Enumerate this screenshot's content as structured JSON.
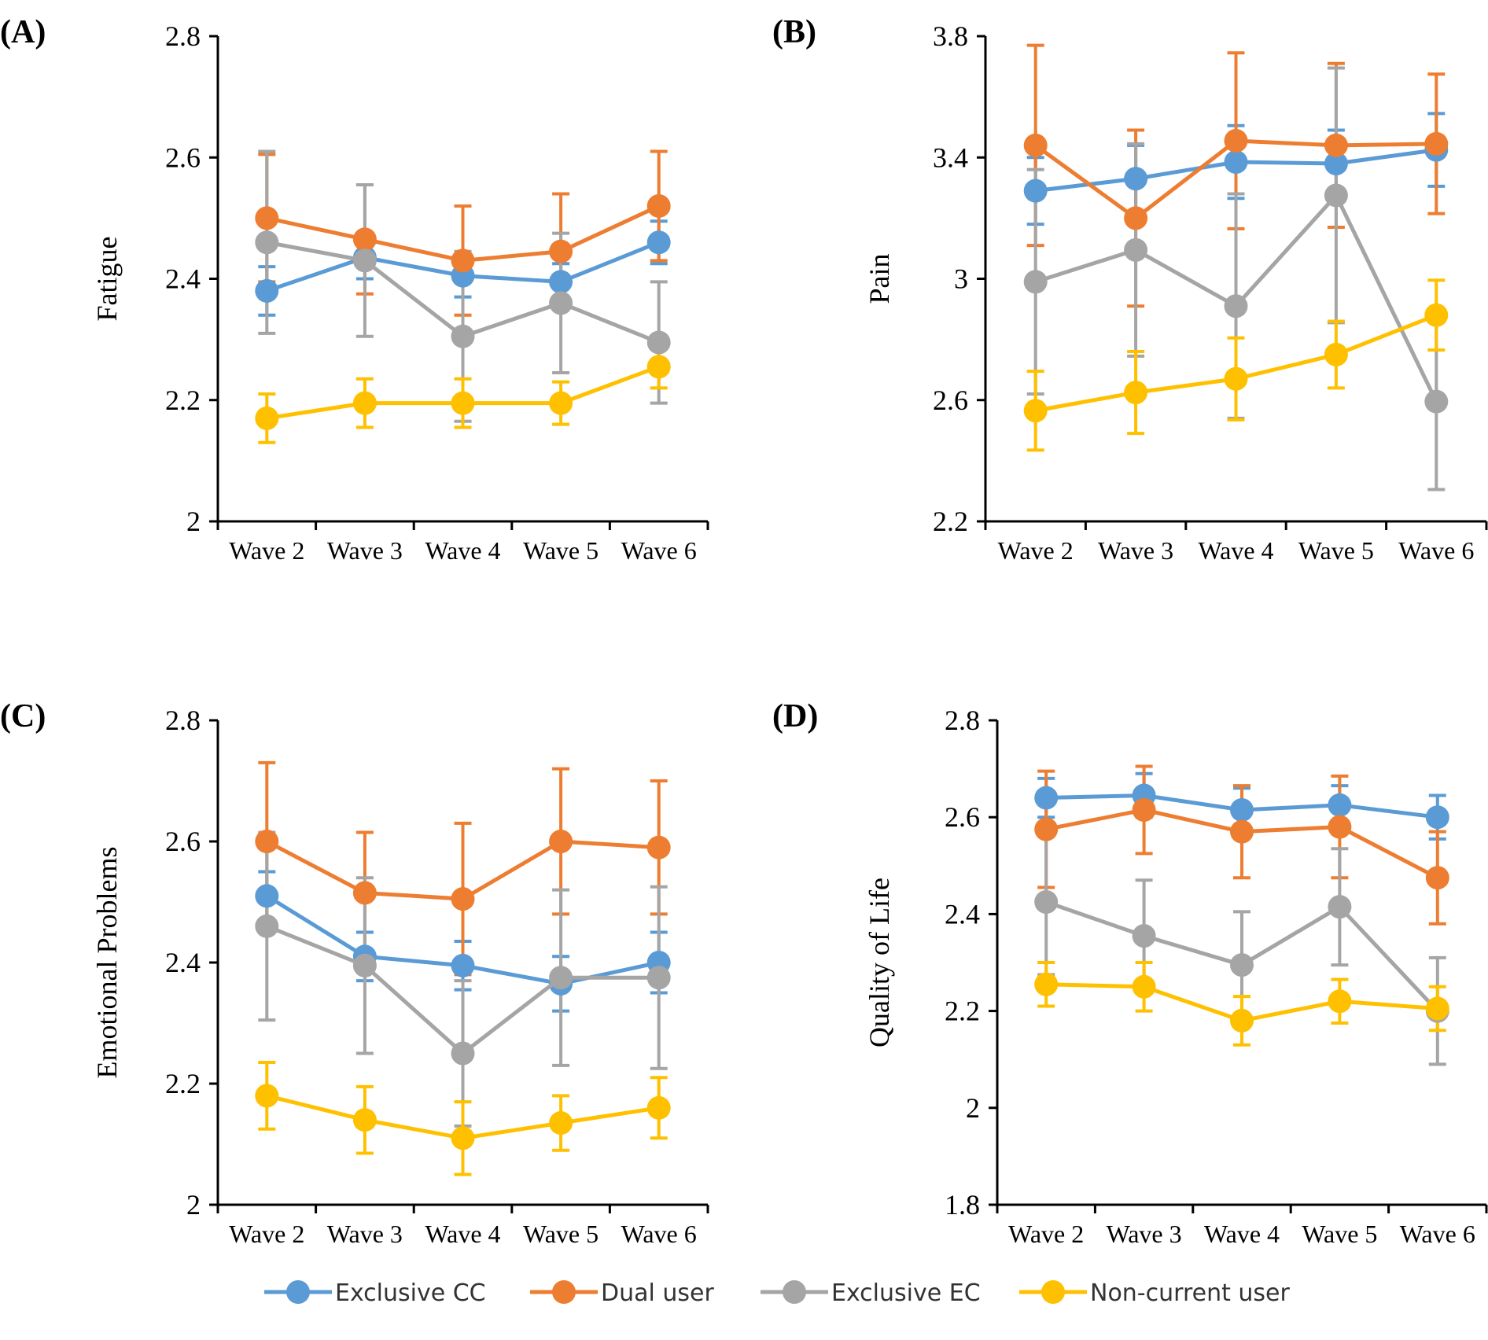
{
  "colors": {
    "exclusive_cc": "#5b9bd5",
    "dual_user": "#ed7d31",
    "exclusive_ec": "#a5a5a5",
    "non_current": "#ffc000",
    "axis": "#000000"
  },
  "legend": [
    {
      "name": "Exclusive CC",
      "color": "#5b9bd5"
    },
    {
      "name": "Dual user",
      "color": "#ed7d31"
    },
    {
      "name": "Exclusive EC",
      "color": "#a5a5a5"
    },
    {
      "name": "Non-current user",
      "color": "#ffc000"
    }
  ],
  "chart_data": [
    {
      "type": "line",
      "panel_label": "(A)",
      "ylabel": "Fatigue",
      "categories": [
        "Wave 2",
        "Wave 3",
        "Wave 4",
        "Wave 5",
        "Wave 6"
      ],
      "ylim": [
        2,
        2.8
      ],
      "yticks": [
        2,
        2.2,
        2.4,
        2.6,
        2.8
      ],
      "ytick_labels": [
        "2",
        "2.2",
        "2.4",
        "2.6",
        "2.8"
      ],
      "series": [
        {
          "name": "Exclusive CC",
          "values": [
            2.38,
            2.435,
            2.405,
            2.395,
            2.46
          ],
          "err": [
            0.04,
            0.035,
            0.035,
            0.03,
            0.035
          ]
        },
        {
          "name": "Dual user",
          "values": [
            2.5,
            2.465,
            2.43,
            2.445,
            2.52
          ],
          "err": [
            0.105,
            0.09,
            0.09,
            0.095,
            0.09
          ]
        },
        {
          "name": "Exclusive EC",
          "values": [
            2.46,
            2.43,
            2.305,
            2.36,
            2.295
          ],
          "err": [
            0.15,
            0.125,
            0.14,
            0.115,
            0.1
          ]
        },
        {
          "name": "Non-current user",
          "values": [
            2.17,
            2.195,
            2.195,
            2.195,
            2.255
          ],
          "err": [
            0.04,
            0.04,
            0.04,
            0.035,
            0.035
          ]
        }
      ]
    },
    {
      "type": "line",
      "panel_label": "(B)",
      "ylabel": "Pain",
      "categories": [
        "Wave 2",
        "Wave 3",
        "Wave 4",
        "Wave 5",
        "Wave 6"
      ],
      "ylim": [
        2.2,
        3.8
      ],
      "yticks": [
        2.2,
        2.6,
        3.0,
        3.4,
        3.8
      ],
      "ytick_labels": [
        "2.2",
        "2.6",
        "3",
        "3.4",
        "3.8"
      ],
      "series": [
        {
          "name": "Exclusive CC",
          "values": [
            3.29,
            3.33,
            3.385,
            3.38,
            3.425
          ],
          "err": [
            0.11,
            0.11,
            0.12,
            0.11,
            0.12
          ]
        },
        {
          "name": "Dual user",
          "values": [
            3.44,
            3.2,
            3.455,
            3.44,
            3.445
          ],
          "err": [
            0.33,
            0.29,
            0.29,
            0.27,
            0.23
          ]
        },
        {
          "name": "Exclusive EC",
          "values": [
            2.99,
            3.095,
            2.91,
            3.275,
            2.595
          ],
          "err": [
            0.37,
            0.35,
            0.37,
            0.42,
            0.29
          ]
        },
        {
          "name": "Non-current user",
          "values": [
            2.565,
            2.625,
            2.67,
            2.75,
            2.88
          ],
          "err": [
            0.13,
            0.135,
            0.135,
            0.11,
            0.115
          ]
        }
      ]
    },
    {
      "type": "line",
      "panel_label": "(C)",
      "ylabel": "Emotional Problems",
      "categories": [
        "Wave 2",
        "Wave 3",
        "Wave 4",
        "Wave 5",
        "Wave 6"
      ],
      "ylim": [
        2,
        2.8
      ],
      "yticks": [
        2,
        2.2,
        2.4,
        2.6,
        2.8
      ],
      "ytick_labels": [
        "2",
        "2.2",
        "2.4",
        "2.6",
        "2.8"
      ],
      "series": [
        {
          "name": "Exclusive CC",
          "values": [
            2.51,
            2.41,
            2.395,
            2.365,
            2.4
          ],
          "err": [
            0.04,
            0.04,
            0.04,
            0.045,
            0.05
          ]
        },
        {
          "name": "Dual user",
          "values": [
            2.6,
            2.515,
            2.505,
            2.6,
            2.59
          ],
          "err": [
            0.13,
            0.1,
            0.125,
            0.12,
            0.11
          ]
        },
        {
          "name": "Exclusive EC",
          "values": [
            2.46,
            2.395,
            2.25,
            2.375,
            2.375
          ],
          "err": [
            0.155,
            0.145,
            0.12,
            0.145,
            0.15
          ]
        },
        {
          "name": "Non-current user",
          "values": [
            2.18,
            2.14,
            2.11,
            2.135,
            2.16
          ],
          "err": [
            0.055,
            0.055,
            0.06,
            0.045,
            0.05
          ]
        }
      ]
    },
    {
      "type": "line",
      "panel_label": "(D)",
      "ylabel": "Quality of Life",
      "categories": [
        "Wave 2",
        "Wave 3",
        "Wave 4",
        "Wave 5",
        "Wave 6"
      ],
      "ylim": [
        1.8,
        2.8
      ],
      "yticks": [
        1.8,
        2.0,
        2.2,
        2.4,
        2.6,
        2.8
      ],
      "ytick_labels": [
        "1.8",
        "2",
        "2.2",
        "2.4",
        "2.6",
        "2.8"
      ],
      "series": [
        {
          "name": "Exclusive CC",
          "values": [
            2.64,
            2.645,
            2.615,
            2.625,
            2.6
          ],
          "err": [
            0.04,
            0.045,
            0.045,
            0.04,
            0.045
          ]
        },
        {
          "name": "Dual user",
          "values": [
            2.575,
            2.615,
            2.57,
            2.58,
            2.475
          ],
          "err": [
            0.12,
            0.09,
            0.095,
            0.105,
            0.095
          ]
        },
        {
          "name": "Exclusive EC",
          "values": [
            2.425,
            2.355,
            2.295,
            2.415,
            2.2
          ],
          "err": [
            0.15,
            0.115,
            0.11,
            0.12,
            0.11
          ]
        },
        {
          "name": "Non-current user",
          "values": [
            2.255,
            2.25,
            2.18,
            2.22,
            2.205
          ],
          "err": [
            0.045,
            0.05,
            0.05,
            0.045,
            0.045
          ]
        }
      ]
    }
  ]
}
